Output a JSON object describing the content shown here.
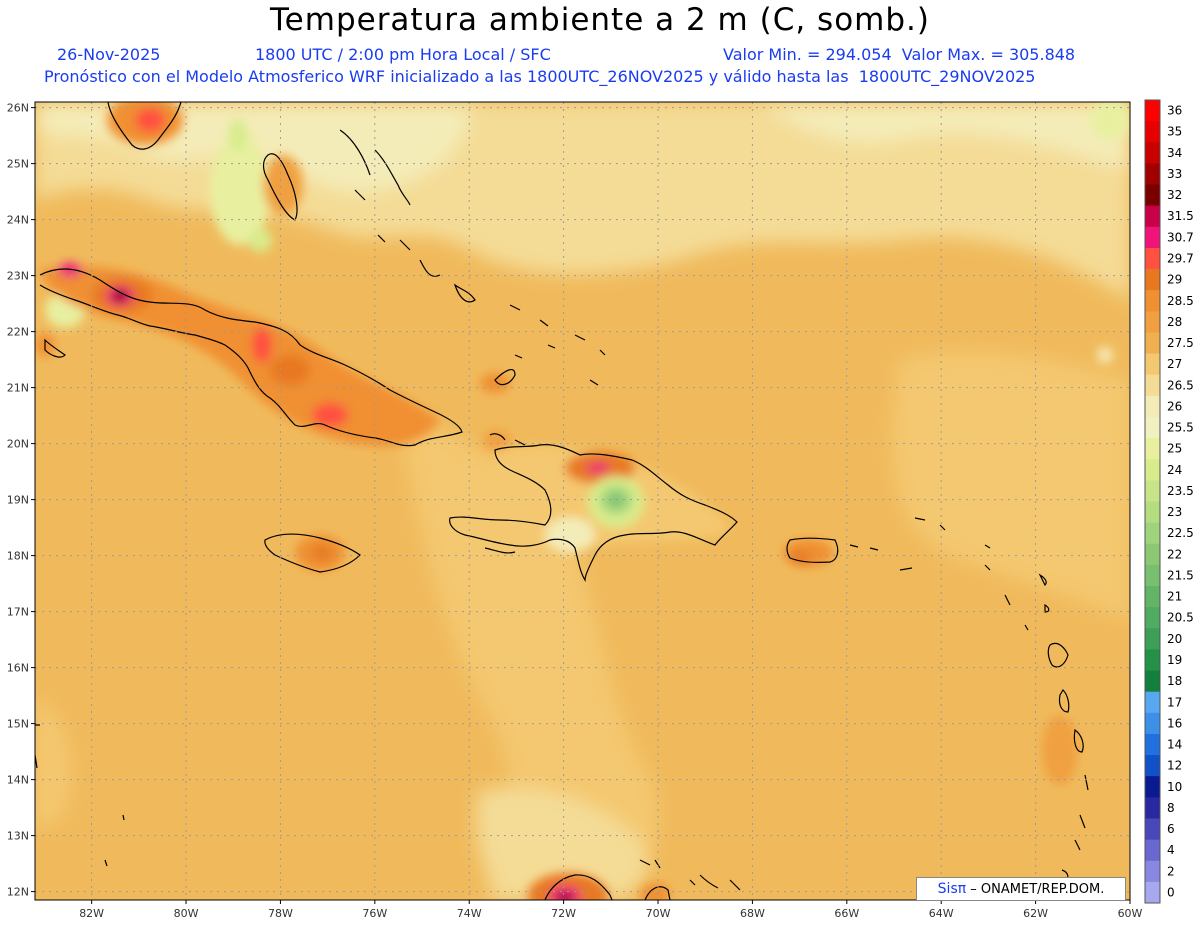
{
  "title": "Temperatura ambiente a 2 m (C, somb.)",
  "date": "26-Nov-2025",
  "time_label": "1800 UTC / 2:00 pm Hora Local / SFC",
  "value_range": "Valor Min. = 294.054  Valor Max. = 305.848",
  "model_line": "Pronóstico con el Modelo Atmosferico WRF inicializado a las 1800UTC_26NOV2025 y válido hasta las  1800UTC_29NOV2025",
  "credit": {
    "brand": "Sisπ",
    "text": " – ONAMET/REP.DOM."
  },
  "map": {
    "lon_min": -83.2,
    "lon_max": -60,
    "lat_min": 11.85,
    "lat_max": 26.1,
    "lat_labels": [
      "12N",
      "13N",
      "14N",
      "15N",
      "16N",
      "17N",
      "18N",
      "19N",
      "20N",
      "21N",
      "22N",
      "23N",
      "24N",
      "25N",
      "26N"
    ],
    "lat_values": [
      12,
      13,
      14,
      15,
      16,
      17,
      18,
      19,
      20,
      21,
      22,
      23,
      24,
      25,
      26
    ],
    "lon_labels": [
      "82W",
      "80W",
      "78W",
      "76W",
      "74W",
      "72W",
      "70W",
      "68W",
      "66W",
      "64W",
      "62W",
      "60W"
    ],
    "lon_values": [
      -82,
      -80,
      -78,
      -76,
      -74,
      -72,
      -70,
      -68,
      -66,
      -64,
      -62,
      -60
    ],
    "base_color": "#f0ba5c"
  },
  "colorbar": {
    "labels": [
      "36",
      "35",
      "34",
      "33",
      "32",
      "31.5",
      "30.7",
      "29.7",
      "29",
      "28.5",
      "28",
      "27.5",
      "27",
      "26.5",
      "26",
      "25.5",
      "25",
      "24",
      "23.5",
      "23",
      "22.5",
      "22",
      "21.5",
      "21",
      "20.5",
      "20",
      "19",
      "18",
      "17",
      "16",
      "14",
      "12",
      "10",
      "8",
      "6",
      "4",
      "2",
      "0"
    ],
    "colors": [
      "#ff0000",
      "#e60000",
      "#c80000",
      "#a00000",
      "#7a0000",
      "#c8004a",
      "#f0147a",
      "#ff5040",
      "#e87820",
      "#f09030",
      "#f0a040",
      "#f0b050",
      "#f4c870",
      "#f4dc96",
      "#f4ecb8",
      "#f0f0c0",
      "#e8f0a0",
      "#d8ec8c",
      "#c8e488",
      "#b4dc80",
      "#a0d47c",
      "#8cc874",
      "#78c070",
      "#64b468",
      "#50ac60",
      "#3ca058",
      "#249048",
      "#10803c",
      "#58a8f0",
      "#3c90e8",
      "#2070e0",
      "#1050c8",
      "#0a1a90",
      "#2828a0",
      "#4848b8",
      "#6868d0",
      "#8888e0",
      "#a8a8f0"
    ]
  }
}
